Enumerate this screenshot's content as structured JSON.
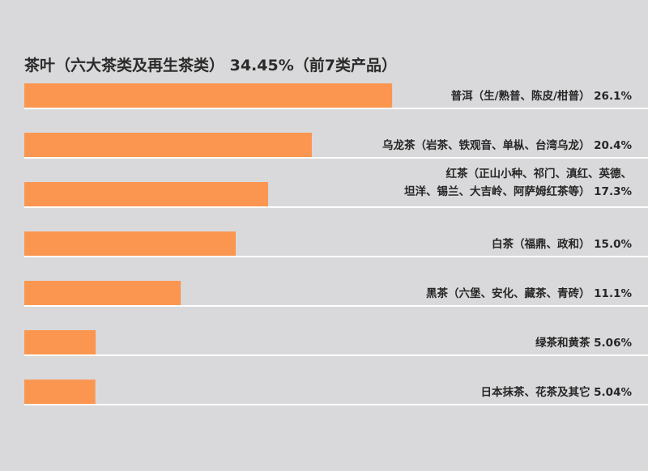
{
  "chart_data": {
    "type": "bar",
    "orientation": "horizontal",
    "title": "茶叶（六大茶类及再生茶类） 34.45%（前7类产品）",
    "unit": "%",
    "categories": [
      [
        "普洱（生/熟普、陈皮/柑普）"
      ],
      [
        "乌龙茶（岩茶、铁观音、单枞、台湾乌龙）"
      ],
      [
        "红茶（正山小种、祁门、滇红、英德、",
        "坦洋、锡兰、大吉岭、阿萨姆红茶等）"
      ],
      [
        "白茶（福鼎、政和）"
      ],
      [
        "黑茶（六堡、安化、藏茶、青砖）"
      ],
      [
        "绿茶和黄茶"
      ],
      [
        "日本抹茶、花茶及其它"
      ]
    ],
    "value_labels": [
      "26.1%",
      "20.4%",
      "17.3%",
      "15.0%",
      "11.1%",
      "5.06%",
      "5.04%"
    ],
    "values": [
      26.1,
      20.4,
      17.3,
      15.0,
      11.1,
      5.06,
      5.04
    ],
    "grid": false,
    "legend": "none",
    "colors": {
      "bar": "#fb9650",
      "baseline": "#ffffff",
      "background": "#d9d9db",
      "text": "#262626"
    }
  }
}
